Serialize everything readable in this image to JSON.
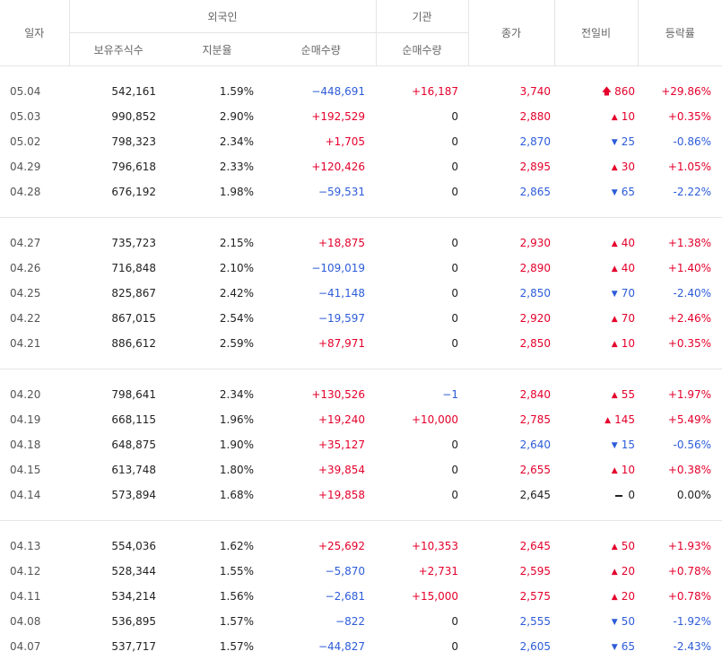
{
  "header": {
    "date": "일자",
    "foreign": "외국인",
    "institution": "기관",
    "close": "종가",
    "change": "전일비",
    "rate": "등락률",
    "holdings": "보유주식수",
    "ratio": "지분율",
    "foreign_net": "순매수량",
    "inst_net": "순매수량"
  },
  "colors": {
    "up": "#e4002b",
    "down": "#2d5cd8",
    "neutral": "#222222"
  },
  "groups": [
    [
      {
        "date": "05.04",
        "holdings": "542,161",
        "ratio": "1.59%",
        "fnet": "−448,691",
        "fdir": "down",
        "inet": "+16,187",
        "idir": "up",
        "close": "3,740",
        "cdir": "up",
        "arrow": "upper-limit",
        "change": "860",
        "rate": "+29.86%"
      },
      {
        "date": "05.03",
        "holdings": "990,852",
        "ratio": "2.90%",
        "fnet": "+192,529",
        "fdir": "up",
        "inet": "0",
        "idir": "none",
        "close": "2,880",
        "cdir": "up",
        "arrow": "up",
        "change": "10",
        "rate": "+0.35%"
      },
      {
        "date": "05.02",
        "holdings": "798,323",
        "ratio": "2.34%",
        "fnet": "+1,705",
        "fdir": "up",
        "inet": "0",
        "idir": "none",
        "close": "2,870",
        "cdir": "down",
        "arrow": "down",
        "change": "25",
        "rate": "-0.86%"
      },
      {
        "date": "04.29",
        "holdings": "796,618",
        "ratio": "2.33%",
        "fnet": "+120,426",
        "fdir": "up",
        "inet": "0",
        "idir": "none",
        "close": "2,895",
        "cdir": "up",
        "arrow": "up",
        "change": "30",
        "rate": "+1.05%"
      },
      {
        "date": "04.28",
        "holdings": "676,192",
        "ratio": "1.98%",
        "fnet": "−59,531",
        "fdir": "down",
        "inet": "0",
        "idir": "none",
        "close": "2,865",
        "cdir": "down",
        "arrow": "down",
        "change": "65",
        "rate": "-2.22%"
      }
    ],
    [
      {
        "date": "04.27",
        "holdings": "735,723",
        "ratio": "2.15%",
        "fnet": "+18,875",
        "fdir": "up",
        "inet": "0",
        "idir": "none",
        "close": "2,930",
        "cdir": "up",
        "arrow": "up",
        "change": "40",
        "rate": "+1.38%"
      },
      {
        "date": "04.26",
        "holdings": "716,848",
        "ratio": "2.10%",
        "fnet": "−109,019",
        "fdir": "down",
        "inet": "0",
        "idir": "none",
        "close": "2,890",
        "cdir": "up",
        "arrow": "up",
        "change": "40",
        "rate": "+1.40%"
      },
      {
        "date": "04.25",
        "holdings": "825,867",
        "ratio": "2.42%",
        "fnet": "−41,148",
        "fdir": "down",
        "inet": "0",
        "idir": "none",
        "close": "2,850",
        "cdir": "down",
        "arrow": "down",
        "change": "70",
        "rate": "-2.40%"
      },
      {
        "date": "04.22",
        "holdings": "867,015",
        "ratio": "2.54%",
        "fnet": "−19,597",
        "fdir": "down",
        "inet": "0",
        "idir": "none",
        "close": "2,920",
        "cdir": "up",
        "arrow": "up",
        "change": "70",
        "rate": "+2.46%"
      },
      {
        "date": "04.21",
        "holdings": "886,612",
        "ratio": "2.59%",
        "fnet": "+87,971",
        "fdir": "up",
        "inet": "0",
        "idir": "none",
        "close": "2,850",
        "cdir": "up",
        "arrow": "up",
        "change": "10",
        "rate": "+0.35%"
      }
    ],
    [
      {
        "date": "04.20",
        "holdings": "798,641",
        "ratio": "2.34%",
        "fnet": "+130,526",
        "fdir": "up",
        "inet": "−1",
        "idir": "down",
        "close": "2,840",
        "cdir": "up",
        "arrow": "up",
        "change": "55",
        "rate": "+1.97%"
      },
      {
        "date": "04.19",
        "holdings": "668,115",
        "ratio": "1.96%",
        "fnet": "+19,240",
        "fdir": "up",
        "inet": "+10,000",
        "idir": "up",
        "close": "2,785",
        "cdir": "up",
        "arrow": "up",
        "change": "145",
        "rate": "+5.49%"
      },
      {
        "date": "04.18",
        "holdings": "648,875",
        "ratio": "1.90%",
        "fnet": "+35,127",
        "fdir": "up",
        "inet": "0",
        "idir": "none",
        "close": "2,640",
        "cdir": "down",
        "arrow": "down",
        "change": "15",
        "rate": "-0.56%"
      },
      {
        "date": "04.15",
        "holdings": "613,748",
        "ratio": "1.80%",
        "fnet": "+39,854",
        "fdir": "up",
        "inet": "0",
        "idir": "none",
        "close": "2,655",
        "cdir": "up",
        "arrow": "up",
        "change": "10",
        "rate": "+0.38%"
      },
      {
        "date": "04.14",
        "holdings": "573,894",
        "ratio": "1.68%",
        "fnet": "+19,858",
        "fdir": "up",
        "inet": "0",
        "idir": "none",
        "close": "2,645",
        "cdir": "none",
        "arrow": "flat",
        "change": "0",
        "rate": "0.00%"
      }
    ],
    [
      {
        "date": "04.13",
        "holdings": "554,036",
        "ratio": "1.62%",
        "fnet": "+25,692",
        "fdir": "up",
        "inet": "+10,353",
        "idir": "up",
        "close": "2,645",
        "cdir": "up",
        "arrow": "up",
        "change": "50",
        "rate": "+1.93%"
      },
      {
        "date": "04.12",
        "holdings": "528,344",
        "ratio": "1.55%",
        "fnet": "−5,870",
        "fdir": "down",
        "inet": "+2,731",
        "idir": "up",
        "close": "2,595",
        "cdir": "up",
        "arrow": "up",
        "change": "20",
        "rate": "+0.78%"
      },
      {
        "date": "04.11",
        "holdings": "534,214",
        "ratio": "1.56%",
        "fnet": "−2,681",
        "fdir": "down",
        "inet": "+15,000",
        "idir": "up",
        "close": "2,575",
        "cdir": "up",
        "arrow": "up",
        "change": "20",
        "rate": "+0.78%"
      },
      {
        "date": "04.08",
        "holdings": "536,895",
        "ratio": "1.57%",
        "fnet": "−822",
        "fdir": "down",
        "inet": "0",
        "idir": "none",
        "close": "2,555",
        "cdir": "down",
        "arrow": "down",
        "change": "50",
        "rate": "-1.92%"
      },
      {
        "date": "04.07",
        "holdings": "537,717",
        "ratio": "1.57%",
        "fnet": "−44,827",
        "fdir": "down",
        "inet": "0",
        "idir": "none",
        "close": "2,605",
        "cdir": "down",
        "arrow": "down",
        "change": "65",
        "rate": "-2.43%"
      }
    ]
  ]
}
